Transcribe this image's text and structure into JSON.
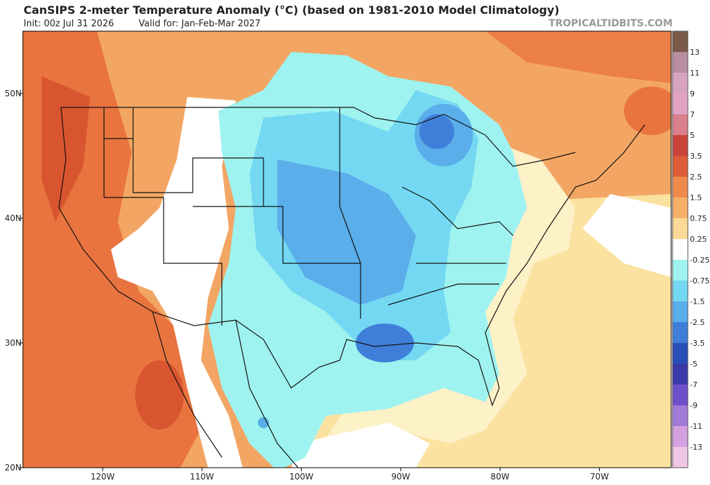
{
  "header": {
    "title": "CanSIPS 2-meter Temperature Anomaly (°C) (based on 1981-2010 Model Climatology)",
    "init": "Init: 00z Jul 31 2026",
    "valid": "Valid for: Jan-Feb-Mar 2027",
    "site": "TROPICALTIDBITS.COM"
  },
  "map": {
    "lat_labels": [
      "50N",
      "40N",
      "30N",
      "20N"
    ],
    "lon_labels": [
      "120W",
      "110W",
      "100W",
      "90W",
      "80W",
      "70W"
    ]
  },
  "legend": {
    "labels": [
      "13",
      "11",
      "9",
      "7",
      "5",
      "3.5",
      "2.5",
      "1.5",
      "0.75",
      "0.25",
      "-0.25",
      "-0.75",
      "-1.5",
      "-2.5",
      "-3.5",
      "-5",
      "-7",
      "-9",
      "-11",
      "-13"
    ],
    "colors": [
      "#7a5a48",
      "#b98ea0",
      "#d7a3c0",
      "#e2a2c6",
      "#d9808c",
      "#c9433b",
      "#de5c38",
      "#ee8a4a",
      "#f6b069",
      "#fbd996",
      "#ffffff",
      "#9ef3f0",
      "#74d8f2",
      "#5aaee9",
      "#3f7fda",
      "#2a4fb8",
      "#3a3aa8",
      "#6e50c8",
      "#a27ad8",
      "#d4a0e0",
      "#f0c6e6"
    ]
  }
}
